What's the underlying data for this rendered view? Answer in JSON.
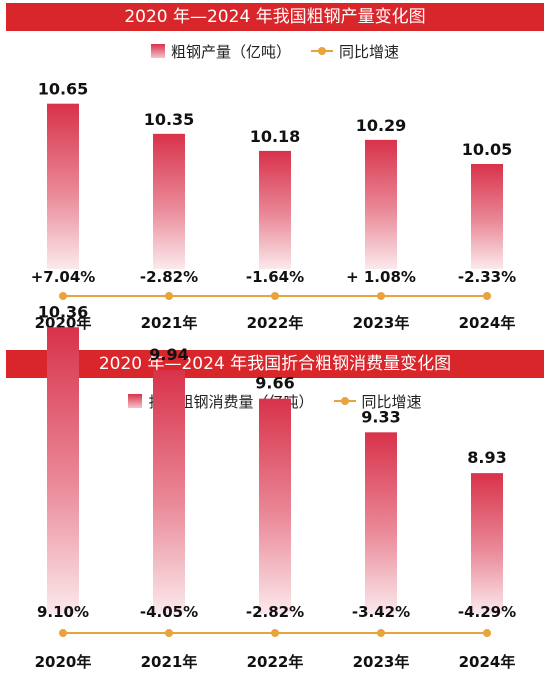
{
  "chart_data": [
    {
      "type": "bar",
      "title": "2020 年—2024 年我国粗钢产量变化图",
      "categories": [
        "2020年",
        "2021年",
        "2022年",
        "2023年",
        "2024年"
      ],
      "series": [
        {
          "name": "粗钢产量（亿吨）",
          "type": "bar",
          "values": [
            10.65,
            10.35,
            10.18,
            10.29,
            10.05
          ],
          "labels": [
            "10.65",
            "10.35",
            "10.18",
            "10.29",
            "10.05"
          ]
        },
        {
          "name": "同比增速",
          "type": "line",
          "values": [
            7.04,
            -2.82,
            -1.64,
            1.08,
            -2.33
          ],
          "labels": [
            "+7.04%",
            "-2.82%",
            "-1.64%",
            "+ 1.08%",
            "-2.33%"
          ]
        }
      ],
      "legend_position": "top-center",
      "grid": false,
      "colors": {
        "bar": "#d8324a",
        "line": "#e8a33d",
        "title_bg": "#d8262a"
      }
    },
    {
      "type": "bar",
      "title": "2020 年—2024 年我国折合粗钢消费量变化图",
      "categories": [
        "2020年",
        "2021年",
        "2022年",
        "2023年",
        "2024年"
      ],
      "series": [
        {
          "name": "折合粗钢消费量（亿吨）",
          "type": "bar",
          "values": [
            10.36,
            9.94,
            9.66,
            9.33,
            8.93
          ],
          "labels": [
            "10.36",
            "9.94",
            "9.66",
            "9.33",
            "8.93"
          ]
        },
        {
          "name": "同比增速",
          "type": "line",
          "values": [
            9.1,
            -4.05,
            -2.82,
            -3.42,
            -4.29
          ],
          "labels": [
            "9.10%",
            "-4.05%",
            "-2.82%",
            "-3.42%",
            "-4.29%"
          ]
        }
      ],
      "legend_position": "top-center",
      "grid": false,
      "colors": {
        "bar": "#d8324a",
        "line": "#e8a33d",
        "title_bg": "#d8262a"
      }
    }
  ]
}
